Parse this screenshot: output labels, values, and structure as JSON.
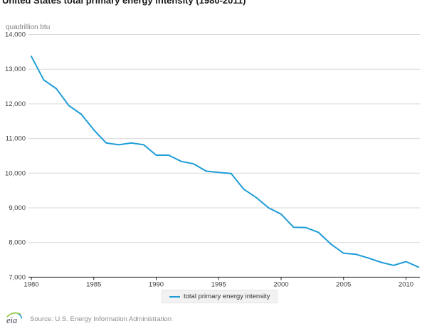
{
  "title": "United States total primary energy intensity (1980-2011)",
  "chart_data": {
    "type": "line",
    "title": "United States total primary energy intensity (1980-2011)",
    "ylabel": "quadrillion btu",
    "xlabel": "",
    "xlim": [
      1980,
      2011
    ],
    "ylim": [
      7000,
      14000
    ],
    "xticks": [
      1980,
      1985,
      1990,
      1995,
      2000,
      2005,
      2010
    ],
    "yticks": [
      7000,
      8000,
      9000,
      10000,
      11000,
      12000,
      13000,
      14000
    ],
    "grid": true,
    "legend_position": "bottom",
    "line_color": "#1e9cd7",
    "x": [
      1980,
      1981,
      1982,
      1983,
      1984,
      1985,
      1986,
      1987,
      1988,
      1989,
      1990,
      1991,
      1992,
      1993,
      1994,
      1995,
      1996,
      1997,
      1998,
      1999,
      2000,
      2001,
      2002,
      2003,
      2004,
      2005,
      2006,
      2007,
      2008,
      2009,
      2010,
      2011
    ],
    "series": [
      {
        "name": "total primary energy intensity",
        "values": [
          13370,
          12690,
          12440,
          11950,
          11700,
          11250,
          10870,
          10820,
          10870,
          10820,
          10520,
          10520,
          10340,
          10270,
          10060,
          10020,
          9990,
          9540,
          9300,
          9000,
          8820,
          8440,
          8430,
          8290,
          7950,
          7690,
          7660,
          7550,
          7430,
          7340,
          7450,
          7290
        ]
      }
    ]
  },
  "legend": {
    "label": "total primary energy intensity"
  },
  "footer": {
    "logo_text": "eia",
    "source": "Source: U.S. Energy Information Administration"
  },
  "colors": {
    "line": "#1e9cd7",
    "grid": "#d9d9d9",
    "axis": "#262626",
    "tick_text": "#404040",
    "muted_text": "#7f7f7f",
    "legend_bg": "#f2f2f2"
  }
}
